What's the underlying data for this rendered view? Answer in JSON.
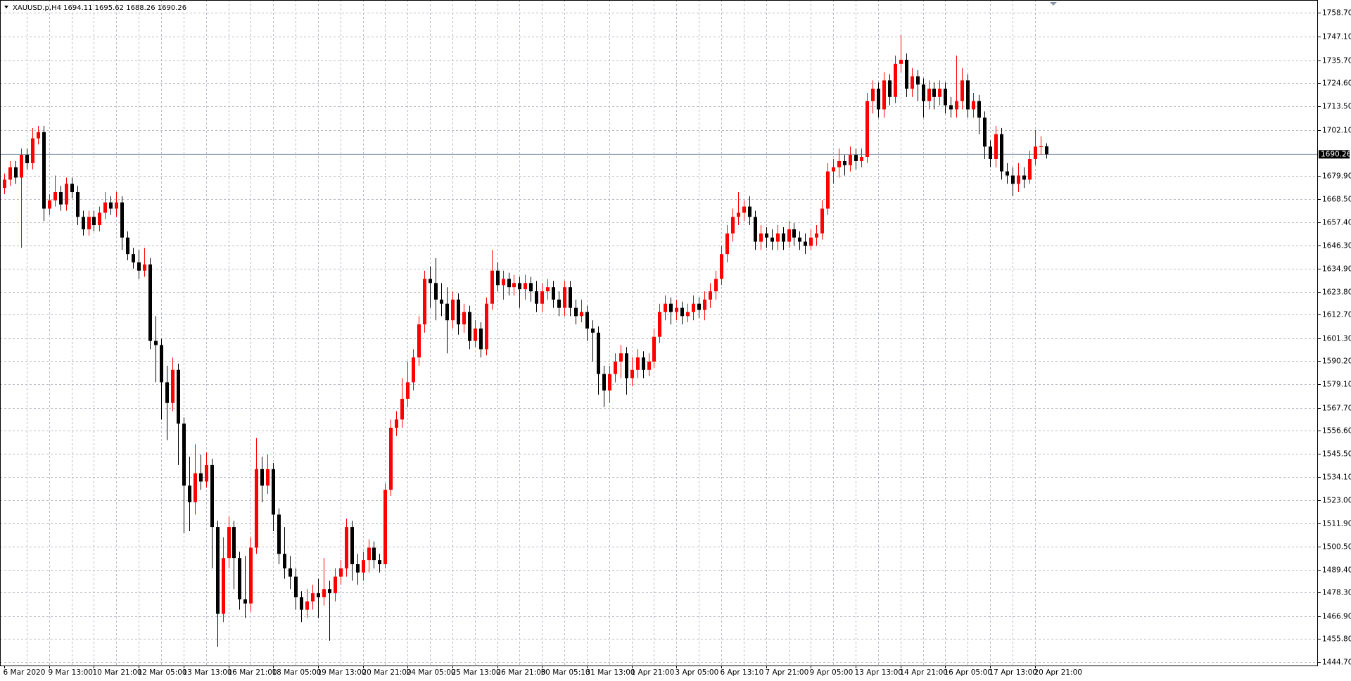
{
  "chart_data": {
    "type": "candlestick",
    "title": "XAUUSD.p,H4  1694.11 1695.62 1688.26 1690.26",
    "up_color": "#ff0000",
    "down_color": "#000000",
    "grid": true,
    "price_line": 1690.26,
    "ylim": [
      1443.0,
      1764.9
    ],
    "yticks": [
      {
        "value": 1758.7,
        "label": "1758.70"
      },
      {
        "value": 1747.1,
        "label": "1747.10"
      },
      {
        "value": 1735.7,
        "label": "1735.70"
      },
      {
        "value": 1724.6,
        "label": "1724.60"
      },
      {
        "value": 1713.5,
        "label": "1713.50"
      },
      {
        "value": 1702.1,
        "label": "1702.10"
      },
      {
        "value": 1679.9,
        "label": "1679.90"
      },
      {
        "value": 1668.5,
        "label": "1668.50"
      },
      {
        "value": 1657.4,
        "label": "1657.40"
      },
      {
        "value": 1646.3,
        "label": "1646.30"
      },
      {
        "value": 1634.9,
        "label": "1634.90"
      },
      {
        "value": 1623.8,
        "label": "1623.80"
      },
      {
        "value": 1612.7,
        "label": "1612.70"
      },
      {
        "value": 1601.3,
        "label": "1601.30"
      },
      {
        "value": 1590.2,
        "label": "1590.20"
      },
      {
        "value": 1579.1,
        "label": "1579.10"
      },
      {
        "value": 1567.7,
        "label": "1567.70"
      },
      {
        "value": 1556.6,
        "label": "1556.60"
      },
      {
        "value": 1545.5,
        "label": "1545.50"
      },
      {
        "value": 1534.1,
        "label": "1534.10"
      },
      {
        "value": 1523,
        "label": "1523.00"
      },
      {
        "value": 1511.9,
        "label": "1511.90"
      },
      {
        "value": 1500.5,
        "label": "1500.50"
      },
      {
        "value": 1489.4,
        "label": "1489.40"
      },
      {
        "value": 1478.3,
        "label": "1478.30"
      },
      {
        "value": 1466.9,
        "label": "1466.90"
      },
      {
        "value": 1455.8,
        "label": "1455.80"
      },
      {
        "value": 1444.7,
        "label": "1444.70"
      }
    ],
    "categories": [
      "6 Mar 2020",
      null,
      null,
      null,
      null,
      null,
      null,
      null,
      "9 Mar 13:00",
      null,
      null,
      null,
      null,
      null,
      null,
      null,
      "10 Mar 21:00",
      null,
      null,
      null,
      null,
      null,
      null,
      null,
      "12 Mar 05:00",
      null,
      null,
      null,
      null,
      null,
      null,
      null,
      "13 Mar 13:00",
      null,
      null,
      null,
      null,
      null,
      null,
      null,
      "16 Mar 21:00",
      null,
      null,
      null,
      null,
      null,
      null,
      null,
      "18 Mar 05:00",
      null,
      null,
      null,
      null,
      null,
      null,
      null,
      "19 Mar 13:00",
      null,
      null,
      null,
      null,
      null,
      null,
      null,
      "20 Mar 21:00",
      null,
      null,
      null,
      null,
      null,
      null,
      null,
      "24 Mar 05:00",
      null,
      null,
      null,
      null,
      null,
      null,
      null,
      "25 Mar 13:00",
      null,
      null,
      null,
      null,
      null,
      null,
      null,
      "26 Mar 21:00",
      null,
      null,
      null,
      null,
      null,
      null,
      null,
      "30 Mar 05:10",
      null,
      null,
      null,
      null,
      null,
      null,
      null,
      "31 Mar 13:00",
      null,
      null,
      null,
      null,
      null,
      null,
      null,
      "1 Apr 21:00",
      null,
      null,
      null,
      null,
      null,
      null,
      null,
      "3 Apr 05:00",
      null,
      null,
      null,
      null,
      null,
      null,
      null,
      "6 Apr 13:10",
      null,
      null,
      null,
      null,
      null,
      null,
      null,
      "7 Apr 21:00",
      null,
      null,
      null,
      null,
      null,
      null,
      null,
      "9 Apr 05:00",
      null,
      null,
      null,
      null,
      null,
      null,
      null,
      "13 Apr 13:00",
      null,
      null,
      null,
      null,
      null,
      null,
      null,
      "14 Apr 21:00",
      null,
      null,
      null,
      null,
      null,
      null,
      null,
      "16 Apr 05:00",
      null,
      null,
      null,
      null,
      null,
      null,
      null,
      "17 Apr 13:00",
      null,
      null,
      null,
      null,
      null,
      null,
      null,
      "20 Apr 21:00",
      null,
      null
    ],
    "open": [
      1674,
      1678,
      1684,
      1679,
      1690,
      1686,
      1698,
      1701,
      1664,
      1668,
      1672,
      1666,
      1676,
      1672,
      1660,
      1654,
      1660,
      1656,
      1662,
      1667,
      1664,
      1667,
      1650,
      1642,
      1638,
      1634,
      1637,
      1600,
      1598,
      1580,
      1570,
      1586,
      1560,
      1530,
      1522,
      1536,
      1532,
      1540,
      1510,
      1468,
      1495,
      1510,
      1495,
      1475,
      1473,
      1500,
      1538,
      1530,
      1538,
      1516,
      1497,
      1490,
      1486,
      1476,
      1470,
      1474,
      1478,
      1476,
      1480,
      1478,
      1486,
      1490,
      1510,
      1492,
      1488,
      1494,
      1500,
      1494,
      1492,
      1528,
      1558,
      1562,
      1572,
      1580,
      1592,
      1608,
      1630,
      1628,
      1620,
      1618,
      1610,
      1620,
      1608,
      1614,
      1600,
      1606,
      1596,
      1618,
      1634,
      1627,
      1630,
      1626,
      1628,
      1625,
      1628,
      1624,
      1618,
      1624,
      1626,
      1620,
      1616,
      1626,
      1616,
      1612,
      1614,
      1606,
      1604,
      1584,
      1576,
      1584,
      1590,
      1594,
      1582,
      1586,
      1592,
      1586,
      1590,
      1602,
      1614,
      1618,
      1614,
      1616,
      1612,
      1614,
      1618,
      1615,
      1620,
      1624,
      1630,
      1642,
      1652,
      1660,
      1662,
      1665,
      1660,
      1648,
      1652,
      1650,
      1648,
      1652,
      1648,
      1654,
      1650,
      1648,
      1646,
      1650,
      1652,
      1664,
      1682,
      1684,
      1687,
      1685,
      1690,
      1687,
      1689,
      1716,
      1722,
      1712,
      1726,
      1718,
      1734,
      1736,
      1722,
      1728,
      1724,
      1716,
      1722,
      1718,
      1722,
      1714,
      1712,
      1716,
      1726,
      1712,
      1716,
      1708,
      1694,
      1688,
      1700,
      1682,
      1680,
      1676,
      1680,
      1678,
      1688,
      1694,
      1694.11
    ],
    "high": [
      1681,
      1687,
      1687,
      1693,
      1693,
      1703,
      1704,
      1704,
      1671,
      1680,
      1675,
      1679,
      1679,
      1675,
      1663,
      1663,
      1663,
      1665,
      1672,
      1670,
      1672,
      1670,
      1653,
      1645,
      1644,
      1645,
      1640,
      1612,
      1601,
      1588,
      1592,
      1589,
      1563,
      1544,
      1550,
      1545,
      1546,
      1543,
      1513,
      1505,
      1515,
      1513,
      1498,
      1496,
      1505,
      1553,
      1544,
      1545,
      1541,
      1519,
      1510,
      1496,
      1490,
      1479,
      1480,
      1482,
      1485,
      1495,
      1484,
      1490,
      1494,
      1514,
      1513,
      1497,
      1498,
      1504,
      1503,
      1497,
      1531,
      1562,
      1566,
      1582,
      1590,
      1596,
      1612,
      1634,
      1636,
      1640,
      1628,
      1626,
      1624,
      1623,
      1618,
      1617,
      1610,
      1609,
      1621,
      1644,
      1638,
      1634,
      1633,
      1632,
      1631,
      1632,
      1631,
      1629,
      1628,
      1630,
      1629,
      1624,
      1629,
      1629,
      1620,
      1620,
      1617,
      1610,
      1607,
      1588,
      1588,
      1594,
      1598,
      1597,
      1592,
      1596,
      1595,
      1594,
      1606,
      1618,
      1622,
      1621,
      1620,
      1619,
      1618,
      1622,
      1621,
      1624,
      1628,
      1634,
      1646,
      1656,
      1664,
      1672,
      1668,
      1670,
      1663,
      1656,
      1655,
      1654,
      1656,
      1655,
      1658,
      1657,
      1653,
      1652,
      1654,
      1656,
      1668,
      1686,
      1688,
      1693,
      1690,
      1694,
      1693,
      1693,
      1720,
      1726,
      1725,
      1730,
      1729,
      1738,
      1748,
      1739,
      1732,
      1731,
      1727,
      1726,
      1725,
      1726,
      1725,
      1718,
      1738,
      1732,
      1729,
      1720,
      1719,
      1711,
      1697,
      1704,
      1703,
      1686,
      1684,
      1686,
      1684,
      1692,
      1702,
      1699,
      1695.62
    ],
    "low": [
      1671,
      1675,
      1676,
      1645,
      1683,
      1683,
      1695,
      1658,
      1661,
      1665,
      1663,
      1663,
      1669,
      1656,
      1651,
      1651,
      1653,
      1653,
      1659,
      1661,
      1660,
      1644,
      1639,
      1635,
      1630,
      1631,
      1596,
      1580,
      1562,
      1552,
      1566,
      1540,
      1507,
      1508,
      1516,
      1528,
      1529,
      1490,
      1452,
      1464,
      1490,
      1480,
      1470,
      1466,
      1469,
      1497,
      1522,
      1526,
      1508,
      1492,
      1485,
      1480,
      1470,
      1464,
      1466,
      1470,
      1466,
      1472,
      1455,
      1474,
      1482,
      1486,
      1484,
      1482,
      1484,
      1488,
      1490,
      1488,
      1490,
      1525,
      1554,
      1558,
      1568,
      1576,
      1588,
      1604,
      1616,
      1610,
      1612,
      1594,
      1606,
      1603,
      1604,
      1596,
      1597,
      1592,
      1593,
      1615,
      1624,
      1620,
      1622,
      1622,
      1616,
      1620,
      1619,
      1614,
      1614,
      1620,
      1616,
      1612,
      1612,
      1612,
      1608,
      1609,
      1600,
      1590,
      1574,
      1568,
      1570,
      1580,
      1582,
      1574,
      1578,
      1582,
      1582,
      1583,
      1587,
      1599,
      1610,
      1608,
      1610,
      1608,
      1609,
      1610,
      1611,
      1610,
      1616,
      1620,
      1627,
      1638,
      1648,
      1656,
      1658,
      1656,
      1644,
      1644,
      1645,
      1644,
      1644,
      1644,
      1645,
      1646,
      1644,
      1642,
      1644,
      1646,
      1649,
      1661,
      1676,
      1679,
      1680,
      1682,
      1683,
      1684,
      1686,
      1710,
      1708,
      1708,
      1714,
      1715,
      1730,
      1718,
      1718,
      1716,
      1708,
      1712,
      1712,
      1714,
      1710,
      1708,
      1708,
      1712,
      1708,
      1708,
      1700,
      1688,
      1684,
      1684,
      1678,
      1676,
      1670,
      1672,
      1674,
      1676,
      1685,
      1690,
      1688.26
    ],
    "close": [
      1678,
      1684,
      1679,
      1690,
      1686,
      1698,
      1701,
      1664,
      1668,
      1672,
      1666,
      1676,
      1672,
      1660,
      1654,
      1660,
      1656,
      1662,
      1667,
      1664,
      1667,
      1650,
      1642,
      1638,
      1634,
      1637,
      1600,
      1598,
      1580,
      1570,
      1586,
      1560,
      1530,
      1522,
      1536,
      1532,
      1540,
      1510,
      1468,
      1495,
      1510,
      1495,
      1475,
      1473,
      1500,
      1538,
      1530,
      1538,
      1516,
      1497,
      1490,
      1486,
      1476,
      1470,
      1474,
      1478,
      1476,
      1480,
      1478,
      1486,
      1490,
      1510,
      1492,
      1488,
      1494,
      1500,
      1494,
      1492,
      1528,
      1558,
      1562,
      1572,
      1580,
      1592,
      1608,
      1630,
      1628,
      1620,
      1618,
      1610,
      1620,
      1608,
      1614,
      1600,
      1606,
      1596,
      1618,
      1634,
      1627,
      1630,
      1626,
      1628,
      1625,
      1628,
      1624,
      1618,
      1624,
      1626,
      1620,
      1616,
      1626,
      1616,
      1612,
      1614,
      1606,
      1604,
      1584,
      1576,
      1584,
      1590,
      1594,
      1582,
      1586,
      1592,
      1586,
      1590,
      1602,
      1614,
      1618,
      1614,
      1616,
      1612,
      1614,
      1618,
      1615,
      1620,
      1624,
      1630,
      1642,
      1652,
      1660,
      1662,
      1665,
      1660,
      1648,
      1652,
      1650,
      1648,
      1652,
      1648,
      1654,
      1650,
      1648,
      1646,
      1650,
      1652,
      1664,
      1682,
      1684,
      1687,
      1685,
      1690,
      1687,
      1689,
      1716,
      1722,
      1712,
      1726,
      1718,
      1734,
      1736,
      1722,
      1728,
      1724,
      1716,
      1722,
      1718,
      1722,
      1714,
      1712,
      1716,
      1726,
      1712,
      1716,
      1708,
      1694,
      1688,
      1700,
      1682,
      1680,
      1676,
      1680,
      1678,
      1688,
      1694,
      1694.11,
      1690.26
    ]
  }
}
